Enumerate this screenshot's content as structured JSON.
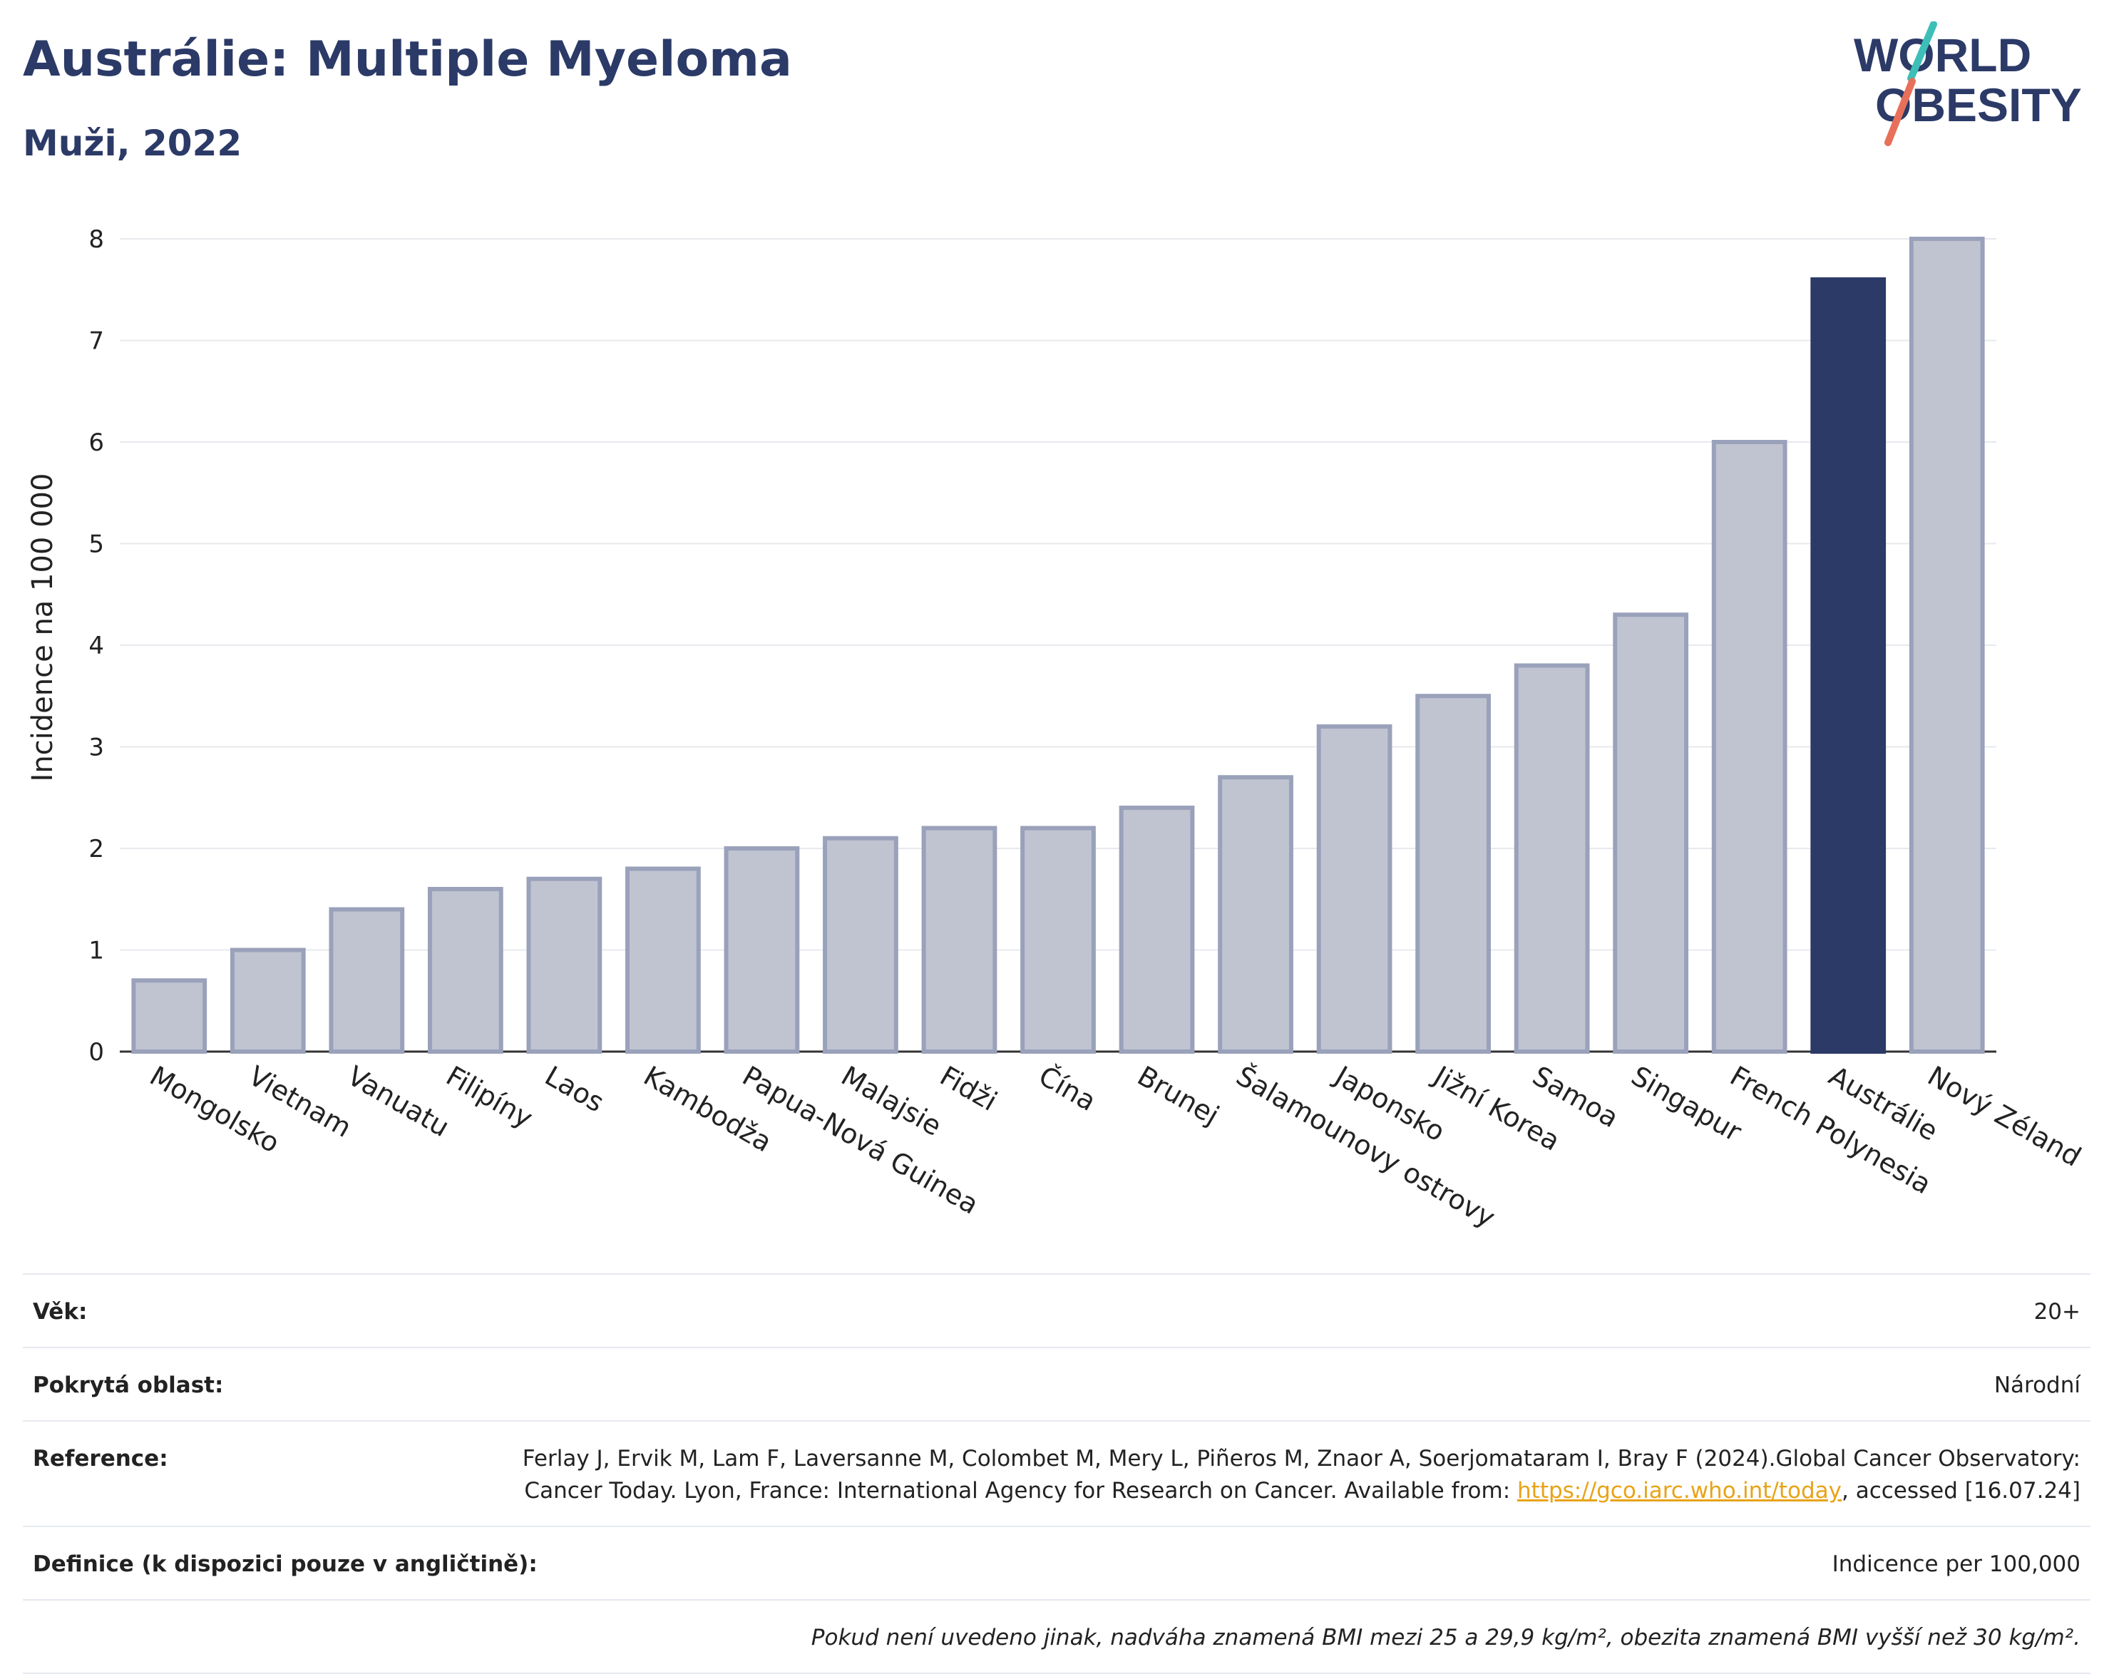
{
  "header": {
    "title": "Austrálie: Multiple Myeloma",
    "subtitle": "Muži, 2022"
  },
  "logo": {
    "line1": "WORLD",
    "line2": "OBESITY",
    "colors": {
      "text": "#2b3a67",
      "slash_top": "#3dbfb8",
      "slash_bottom": "#e8705a"
    }
  },
  "chart_data": {
    "type": "bar",
    "ylabel": "Incidence na 100 000",
    "xlabel": "",
    "ylim": [
      0,
      8
    ],
    "yticks": [
      0,
      1,
      2,
      3,
      4,
      5,
      6,
      7,
      8
    ],
    "grid": true,
    "categories": [
      "Mongolsko",
      "Vietnam",
      "Vanuatu",
      "Filipíny",
      "Laos",
      "Kambodža",
      "Papua-Nová Guinea",
      "Malajsie",
      "Fidži",
      "Čína",
      "Brunej",
      "Šalamounovy ostrovy",
      "Japonsko",
      "Jižní Korea",
      "Samoa",
      "Singapur",
      "French Polynesia",
      "Austrálie",
      "Nový Zéland"
    ],
    "values": [
      0.7,
      1.0,
      1.4,
      1.6,
      1.7,
      1.8,
      2.0,
      2.1,
      2.2,
      2.2,
      2.4,
      2.7,
      3.2,
      3.5,
      3.8,
      4.3,
      6.0,
      7.6,
      8.0
    ],
    "highlight": "Austrálie",
    "colors": {
      "bar": "#c0c4d1",
      "bar_outline": "#9aa1ba",
      "highlight": "#2b3a67",
      "grid": "#e8e9ee",
      "axis": "#333333"
    }
  },
  "meta": {
    "age_label": "Věk:",
    "age_value": "20+",
    "coverage_label": "Pokrytá oblast:",
    "coverage_value": "Národní",
    "reference_label": "Reference:",
    "reference_text": "Ferlay J, Ervik M, Lam F, Laversanne M, Colombet M, Mery L, Piñeros M, Znaor A, Soerjomataram I, Bray F (2024).Global Cancer Observatory: Cancer Today. Lyon, France: International Agency for Research on Cancer. Available from: ",
    "reference_link": "https://gco.iarc.who.int/today",
    "reference_suffix": ", accessed [16.07.24]",
    "definition_label": "Definice (k dispozici pouze v angličtině):",
    "definition_value": "Indicence per 100,000",
    "note": "Pokud není uvedeno jinak, nadváha znamená BMI mezi 25 a 29,9 kg/m², obezita znamená BMI vyšší než 30 kg/m²."
  }
}
